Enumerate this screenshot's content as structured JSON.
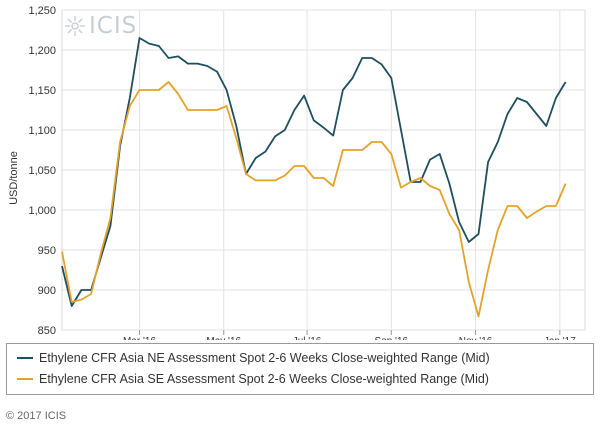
{
  "logo_text": "ICIS",
  "copyright": "© 2017 ICIS",
  "chart_data": {
    "type": "line",
    "ylabel": "USD/tonne",
    "ylim": [
      850,
      1250
    ],
    "yticks": [
      850,
      900,
      950,
      1000,
      1050,
      1100,
      1150,
      1200,
      1250
    ],
    "xticks": [
      {
        "label": "Mar '16",
        "x": 8
      },
      {
        "label": "May '16",
        "x": 16.7
      },
      {
        "label": "Jul '16",
        "x": 25.3
      },
      {
        "label": "Sep '16",
        "x": 34
      },
      {
        "label": "Nov '16",
        "x": 42.7
      },
      {
        "label": "Jan '17",
        "x": 51.4
      }
    ],
    "xlim": [
      0,
      54
    ],
    "grid": true,
    "legend_position": "bottom",
    "series": [
      {
        "name": "Ethylene CFR Asia NE Assessment Spot 2-6 Weeks Close-weighted Range (Mid)",
        "color": "#1f4e5f",
        "values": [
          930,
          880,
          900,
          900,
          940,
          980,
          1080,
          1140,
          1215,
          1208,
          1205,
          1190,
          1192,
          1183,
          1183,
          1180,
          1173,
          1150,
          1105,
          1045,
          1065,
          1073,
          1092,
          1100,
          1125,
          1143,
          1112,
          1103,
          1093,
          1150,
          1165,
          1190,
          1190,
          1182,
          1165,
          1100,
          1035,
          1035,
          1063,
          1070,
          1033,
          985,
          960,
          970,
          1060,
          1085,
          1120,
          1140,
          1135,
          1120,
          1105,
          1140,
          1160
        ]
      },
      {
        "name": "Ethylene CFR Asia SE Assessment Spot 2-6 Weeks Close-weighted Range (Mid)",
        "color": "#e3a32b",
        "values": [
          948,
          885,
          888,
          895,
          945,
          990,
          1085,
          1130,
          1150,
          1150,
          1150,
          1160,
          1145,
          1125,
          1125,
          1125,
          1125,
          1130,
          1090,
          1045,
          1037,
          1037,
          1037,
          1043,
          1055,
          1055,
          1040,
          1040,
          1030,
          1075,
          1075,
          1075,
          1085,
          1085,
          1070,
          1028,
          1035,
          1040,
          1030,
          1025,
          995,
          975,
          910,
          867,
          925,
          975,
          1005,
          1005,
          990,
          998,
          1005,
          1005,
          1033
        ]
      }
    ]
  }
}
